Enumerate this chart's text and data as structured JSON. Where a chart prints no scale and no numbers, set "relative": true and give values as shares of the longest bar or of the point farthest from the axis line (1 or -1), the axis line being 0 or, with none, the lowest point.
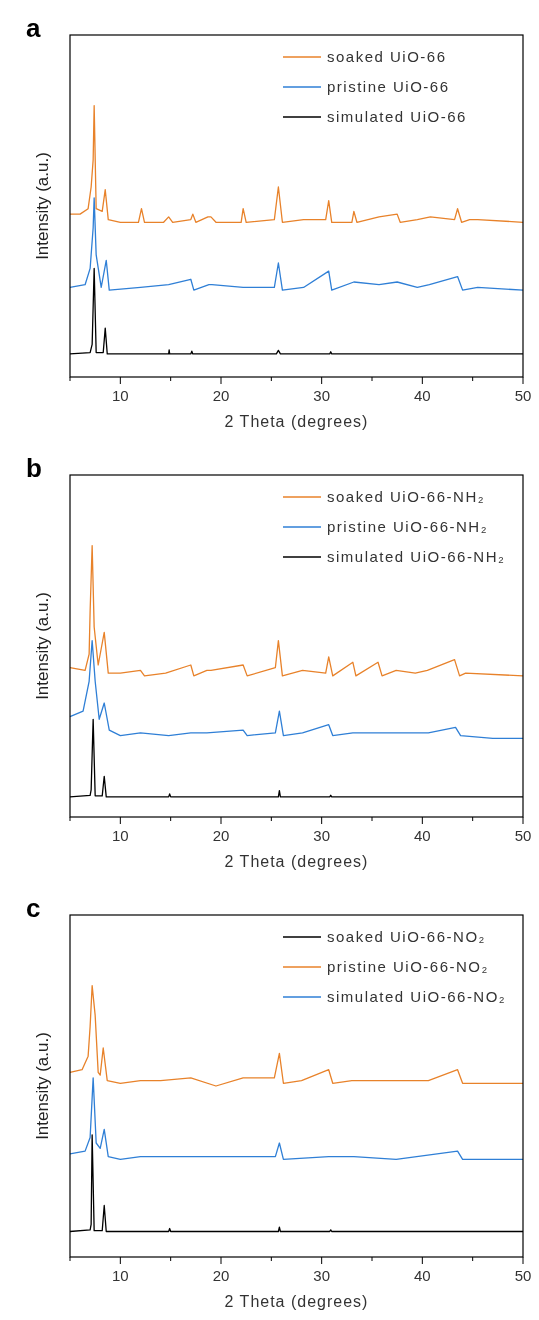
{
  "chart_data": [
    {
      "type": "line",
      "title": "a",
      "xlabel": "2 Theta (degrees)",
      "ylabel": "Intensity (a.u.)",
      "relative": true,
      "xlim": [
        5,
        50
      ],
      "xticks": [
        {
          "value": 5,
          "label": null
        },
        10,
        {
          "value": 15,
          "label": null
        },
        20,
        {
          "value": 25,
          "label": null
        },
        30,
        {
          "value": 35,
          "label": null
        },
        40,
        {
          "value": 45,
          "label": null
        },
        50
      ],
      "tick_labels": "x",
      "legend": "top right",
      "line_style": "solid",
      "series": [
        {
          "name": "soaked UiO-66",
          "color": "#e8822a",
          "x": [
            5,
            6,
            6.8,
            7.1,
            7.3,
            7.4,
            7.6,
            8.2,
            8.5,
            8.8,
            10,
            11.8,
            12.1,
            12.4,
            14.3,
            14.8,
            15.2,
            17,
            17.2,
            17.5,
            18.7,
            19,
            19.5,
            22,
            22.2,
            22.5,
            25.3,
            25.7,
            26.1,
            28.2,
            30.4,
            30.7,
            31,
            33,
            33.2,
            33.5,
            35.7,
            37.5,
            37.8,
            39.5,
            40.8,
            43.2,
            43.5,
            43.9,
            44.7,
            45.5,
            50
          ],
          "values": [
            0.6,
            0.6,
            0.62,
            0.7,
            0.8,
            1,
            0.62,
            0.61,
            0.69,
            0.58,
            0.57,
            0.57,
            0.62,
            0.57,
            0.57,
            0.59,
            0.57,
            0.58,
            0.6,
            0.57,
            0.59,
            0.59,
            0.57,
            0.57,
            0.62,
            0.57,
            0.58,
            0.7,
            0.57,
            0.58,
            0.58,
            0.65,
            0.57,
            0.57,
            0.61,
            0.57,
            0.59,
            0.6,
            0.57,
            0.58,
            0.59,
            0.58,
            0.62,
            0.57,
            0.58,
            0.58,
            0.57
          ]
        },
        {
          "name": "pristine UiO-66",
          "color": "#2f7fd6",
          "x": [
            5,
            6.5,
            7,
            7.3,
            7.4,
            7.6,
            8.1,
            8.6,
            8.9,
            12,
            14.8,
            17,
            17.3,
            18.8,
            19.1,
            22.2,
            25.3,
            25.7,
            26.1,
            28.2,
            30.7,
            31,
            33.2,
            35.7,
            37.5,
            39.5,
            40.7,
            43.5,
            44,
            45.5,
            50
          ],
          "values": [
            0.33,
            0.34,
            0.4,
            0.55,
            0.66,
            0.45,
            0.33,
            0.43,
            0.32,
            0.33,
            0.34,
            0.36,
            0.32,
            0.34,
            0.34,
            0.33,
            0.33,
            0.42,
            0.32,
            0.33,
            0.39,
            0.32,
            0.35,
            0.34,
            0.35,
            0.33,
            0.34,
            0.37,
            0.32,
            0.33,
            0.32
          ]
        },
        {
          "name": "simulated UiO-66",
          "color": "#000000",
          "x": [
            5,
            7,
            7.2,
            7.4,
            7.6,
            8.3,
            8.5,
            8.7,
            14.8,
            14.85,
            14.9,
            17,
            17.1,
            17.2,
            25.5,
            25.7,
            25.9,
            30.8,
            30.9,
            31,
            50
          ],
          "values": [
            0.085,
            0.09,
            0.12,
            0.4,
            0.09,
            0.09,
            0.18,
            0.085,
            0.085,
            0.1,
            0.085,
            0.085,
            0.095,
            0.085,
            0.085,
            0.098,
            0.085,
            0.085,
            0.093,
            0.085,
            0.085
          ]
        }
      ]
    },
    {
      "type": "line",
      "title": "b",
      "xlabel": "2 Theta (degrees)",
      "ylabel": "Intensity (a.u.)",
      "relative": true,
      "xlim": [
        5,
        50
      ],
      "xticks": [
        {
          "value": 5,
          "label": null
        },
        10,
        {
          "value": 15,
          "label": null
        },
        20,
        {
          "value": 25,
          "label": null
        },
        30,
        {
          "value": 35,
          "label": null
        },
        40,
        {
          "value": 45,
          "label": null
        },
        50
      ],
      "tick_labels": "x",
      "legend": "top right",
      "line_style": "solid",
      "series": [
        {
          "name": "soaked UiO-66-NH₂",
          "color": "#e8822a",
          "x": [
            5,
            6.5,
            6.9,
            7.0,
            7.2,
            7.4,
            7.8,
            8.4,
            8.8,
            10,
            12,
            12.4,
            14.5,
            17,
            17.3,
            18.6,
            19,
            22.2,
            22.6,
            25.4,
            25.7,
            26.1,
            28.1,
            30.4,
            30.7,
            31.1,
            33.1,
            33.4,
            35.6,
            36,
            37.4,
            39.3,
            40.5,
            43.2,
            43.7,
            44.3,
            50
          ],
          "values": [
            0.55,
            0.54,
            0.6,
            0.76,
            1,
            0.7,
            0.56,
            0.68,
            0.53,
            0.53,
            0.54,
            0.52,
            0.53,
            0.56,
            0.52,
            0.54,
            0.54,
            0.56,
            0.52,
            0.55,
            0.65,
            0.52,
            0.54,
            0.53,
            0.59,
            0.52,
            0.57,
            0.52,
            0.57,
            0.52,
            0.54,
            0.53,
            0.54,
            0.58,
            0.52,
            0.53,
            0.52
          ]
        },
        {
          "name": "pristine UiO-66-NH₂",
          "color": "#2f7fd6",
          "x": [
            5,
            6.3,
            6.9,
            7.2,
            7.5,
            7.9,
            8.4,
            8.9,
            10,
            12,
            14.8,
            17,
            18.6,
            22.2,
            22.6,
            25.4,
            25.8,
            26.2,
            28.1,
            30.7,
            31.1,
            33.1,
            35.6,
            37.4,
            40.6,
            43.3,
            43.8,
            47,
            50
          ],
          "values": [
            0.37,
            0.39,
            0.5,
            0.65,
            0.5,
            0.36,
            0.42,
            0.32,
            0.3,
            0.31,
            0.3,
            0.31,
            0.31,
            0.32,
            0.3,
            0.31,
            0.39,
            0.3,
            0.31,
            0.34,
            0.3,
            0.31,
            0.31,
            0.31,
            0.31,
            0.33,
            0.3,
            0.29,
            0.29
          ]
        },
        {
          "name": "simulated UiO-66-NH₂",
          "color": "#000000",
          "x": [
            5,
            7,
            7.1,
            7.3,
            7.5,
            8.2,
            8.4,
            8.6,
            14.8,
            14.9,
            15,
            25.7,
            25.8,
            25.9,
            30.8,
            30.9,
            31,
            50
          ],
          "values": [
            0.074,
            0.08,
            0.1,
            0.36,
            0.078,
            0.078,
            0.15,
            0.074,
            0.074,
            0.085,
            0.074,
            0.074,
            0.097,
            0.074,
            0.074,
            0.08,
            0.074,
            0.074
          ]
        }
      ]
    },
    {
      "type": "line",
      "title": "c",
      "xlabel": "2 Theta (degrees)",
      "ylabel": "Intensity (a.u.)",
      "relative": true,
      "xlim": [
        5,
        50
      ],
      "xticks": [
        {
          "value": 5,
          "label": null
        },
        10,
        {
          "value": 15,
          "label": null
        },
        20,
        {
          "value": 25,
          "label": null
        },
        30,
        {
          "value": 35,
          "label": null
        },
        40,
        {
          "value": 45,
          "label": null
        },
        50
      ],
      "tick_labels": "x",
      "legend": "top right",
      "line_style": "solid",
      "series": [
        {
          "name": "soaked UiO-66-NO₂",
          "color": "#000000",
          "x": [
            5,
            7,
            7.1,
            7.2,
            7.4,
            8.2,
            8.4,
            8.6,
            14.8,
            14.9,
            15,
            25.7,
            25.8,
            25.9,
            30.8,
            30.9,
            31,
            50
          ],
          "values": [
            0.094,
            0.1,
            0.12,
            0.45,
            0.097,
            0.097,
            0.19,
            0.094,
            0.094,
            0.105,
            0.094,
            0.094,
            0.11,
            0.094,
            0.094,
            0.1,
            0.094,
            0.094
          ]
        },
        {
          "name": "pristine UiO-66-NO₂",
          "color": "#e8822a",
          "x": [
            5,
            6.2,
            6.8,
            7.0,
            7.2,
            7.5,
            7.8,
            8.0,
            8.3,
            8.7,
            10,
            12,
            14,
            17,
            19.5,
            22.2,
            25.3,
            25.8,
            26.2,
            28,
            30.7,
            31.1,
            33,
            35.6,
            37.4,
            40.6,
            43.5,
            44,
            50
          ],
          "values": [
            0.68,
            0.69,
            0.74,
            0.85,
            1,
            0.89,
            0.68,
            0.67,
            0.77,
            0.65,
            0.64,
            0.65,
            0.65,
            0.66,
            0.63,
            0.66,
            0.66,
            0.75,
            0.64,
            0.65,
            0.69,
            0.64,
            0.65,
            0.65,
            0.65,
            0.65,
            0.69,
            0.64,
            0.64
          ]
        },
        {
          "name": "simulated UiO-66-NO₂",
          "color": "#2f7fd6",
          "x": [
            5,
            6.5,
            7.0,
            7.3,
            7.6,
            8.0,
            8.4,
            8.8,
            10,
            12,
            17,
            22.2,
            25.4,
            25.8,
            26.2,
            30.7,
            33.2,
            37.4,
            43.5,
            44,
            50
          ],
          "values": [
            0.38,
            0.39,
            0.44,
            0.66,
            0.42,
            0.4,
            0.47,
            0.37,
            0.36,
            0.37,
            0.37,
            0.37,
            0.37,
            0.42,
            0.36,
            0.37,
            0.37,
            0.36,
            0.39,
            0.36,
            0.36
          ]
        }
      ]
    }
  ]
}
